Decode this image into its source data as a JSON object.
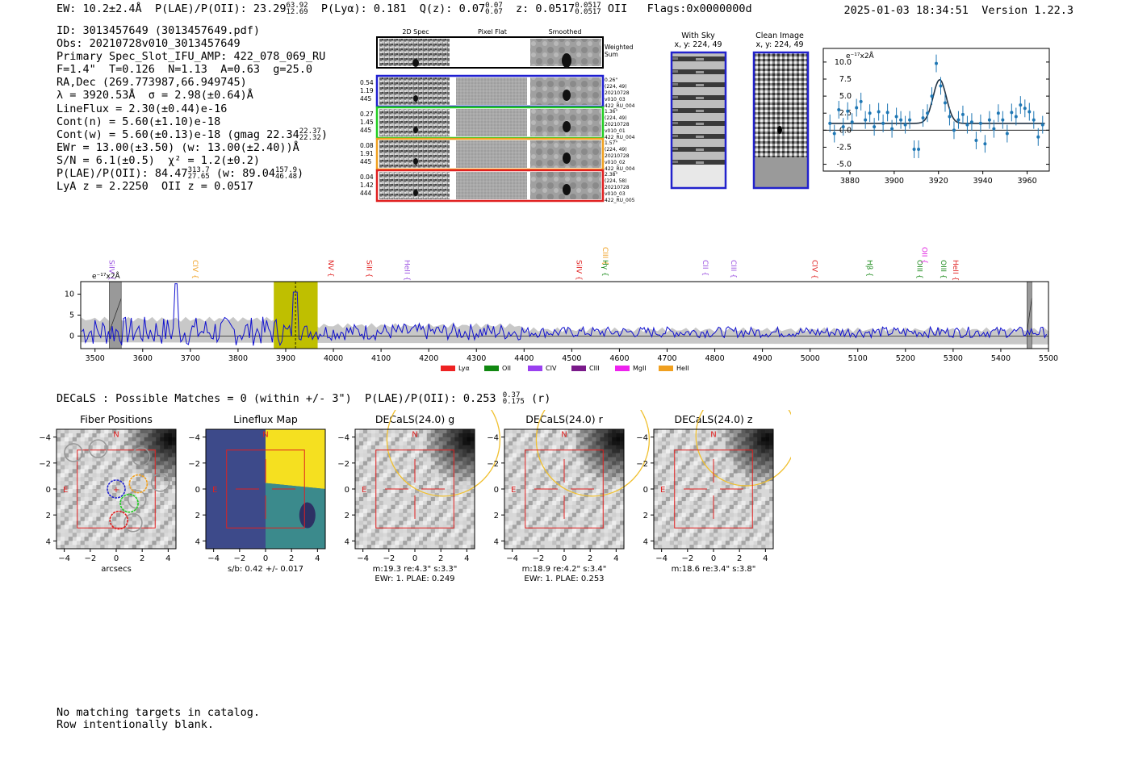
{
  "header": {
    "ew_label": "EW: 10.2±2.4Å",
    "plae_label": "P(LAE)/P(OII): 23.29",
    "plae_hi": "63.92",
    "plae_lo": "12.69",
    "plya": "P(Lyα): 0.181",
    "qz_label": "Q(z): 0.07",
    "qz_hi": "0.07",
    "qz_lo": "0.07",
    "z_label": "z: 0.0517",
    "z_hi": "0.0517",
    "z_lo": "0.0517",
    "z_line": "OII",
    "flags": "Flags:0x0000000d",
    "datetime": "2025-01-03 18:34:51",
    "version": "Version 1.22.3"
  },
  "info": {
    "id": "ID: 3013457649 (3013457649.pdf)",
    "obs": "Obs: 20210728v010_3013457649",
    "primary": "Primary Spec_Slot_IFU_AMP: 422_078_069_RU",
    "fiber": "F=1.4\"  T=0.126  N=1.13  A=0.63  g=25.0",
    "radec": "RA,Dec (269.773987,66.949745)",
    "lambda": "λ = 3920.53Å  σ = 2.98(±0.64)Å",
    "lineflux": "LineFlux = 2.30(±0.44)e-16",
    "cont_n": "Cont(n) = 5.60(±1.10)e-18",
    "cont_w": "Cont(w) = 5.60(±0.13)e-18 (gmag 22.34",
    "cont_w_hi": "22.37",
    "cont_w_lo": "22.32",
    "cont_w_end": ")",
    "ewr": "EWr = 13.00(±3.50) (w: 13.00(±2.40))Å",
    "sn": "S/N = 6.1(±0.5)  χ² = 1.2(±0.2)",
    "plae": "P(LAE)/P(OII): 84.47",
    "plae_hi": "313.7",
    "plae_lo": "27.65",
    "plae_w": "(w: 89.04",
    "plae_w_hi": "157.9",
    "plae_w_lo": "46.48",
    "plae_w_end": ")",
    "z": "LyA z = 2.2250  OII z = 0.0517"
  },
  "cutouts": {
    "col_headers": [
      "2D Spec",
      "Pixel Flat",
      "Smoothed"
    ],
    "weighted_sum": [
      "Weighted",
      "Sum"
    ],
    "rows": [
      {
        "left": [
          "0.54",
          "1.19",
          "445"
        ],
        "right": [
          "0.26\"",
          "(224, 49)",
          "20210728",
          "v010_03",
          "422_RU_004"
        ],
        "color": "#1f1fd0"
      },
      {
        "left": [
          "0.27",
          "1.45",
          "445"
        ],
        "right": [
          "1.36\"",
          "(224, 49)",
          "20210728",
          "v010_01",
          "422_RU_004"
        ],
        "color": "#22cc22"
      },
      {
        "left": [
          "0.08",
          "1.91",
          "445"
        ],
        "right": [
          "1.57\"",
          "(224, 49)",
          "20210728",
          "v010_02",
          "422_RU_004"
        ],
        "color": "#f0a020"
      },
      {
        "left": [
          "0.04",
          "1.42",
          "444"
        ],
        "right": [
          "2.38\"",
          "(224, 58)",
          "20210728",
          "v010_03",
          "422_RU_005"
        ],
        "color": "#e02020"
      }
    ]
  },
  "sky": {
    "with_sky_title": "With Sky",
    "with_sky_xy": "x, y: 224, 49",
    "clean_title": "Clean Image",
    "clean_xy": "x, y: 224, 49"
  },
  "chart_data": [
    {
      "type": "scatter",
      "title": "",
      "unit_label": "e⁻¹⁷x2Å",
      "xlim": [
        3868,
        3970
      ],
      "ylim": [
        -6,
        12
      ],
      "xticks": [
        3880,
        3900,
        3920,
        3940,
        3960
      ],
      "yticks": [
        -5.0,
        -2.5,
        0.0,
        2.5,
        5.0,
        7.5,
        10.0
      ],
      "points": [
        [
          3871,
          1.0
        ],
        [
          3873,
          -0.5
        ],
        [
          3875,
          3.0
        ],
        [
          3877,
          0.5
        ],
        [
          3879,
          2.8
        ],
        [
          3881,
          1.2
        ],
        [
          3883,
          3.3
        ],
        [
          3885,
          4.2
        ],
        [
          3887,
          1.5
        ],
        [
          3889,
          2.5
        ],
        [
          3891,
          0.5
        ],
        [
          3893,
          2.7
        ],
        [
          3895,
          1.0
        ],
        [
          3897,
          2.6
        ],
        [
          3899,
          0.2
        ],
        [
          3901,
          2.0
        ],
        [
          3903,
          1.5
        ],
        [
          3905,
          0.8
        ],
        [
          3907,
          1.5
        ],
        [
          3909,
          -2.8
        ],
        [
          3911,
          -2.8
        ],
        [
          3913,
          1.8
        ],
        [
          3915,
          2.5
        ],
        [
          3917,
          5.0
        ],
        [
          3919,
          9.8
        ],
        [
          3921,
          6.5
        ],
        [
          3923,
          4.0
        ],
        [
          3925,
          2.0
        ],
        [
          3927,
          0.0
        ],
        [
          3929,
          1.5
        ],
        [
          3931,
          2.3
        ],
        [
          3933,
          0.8
        ],
        [
          3935,
          1.2
        ],
        [
          3937,
          -1.5
        ],
        [
          3939,
          1.0
        ],
        [
          3941,
          -2.0
        ],
        [
          3943,
          1.5
        ],
        [
          3945,
          0.2
        ],
        [
          3947,
          2.5
        ],
        [
          3949,
          1.5
        ],
        [
          3951,
          -0.5
        ],
        [
          3953,
          2.6
        ],
        [
          3955,
          2.0
        ],
        [
          3957,
          3.7
        ],
        [
          3959,
          3.2
        ],
        [
          3961,
          2.7
        ],
        [
          3963,
          1.5
        ],
        [
          3965,
          -1.0
        ],
        [
          3967,
          0.8
        ]
      ],
      "fit": {
        "center": 3920.53,
        "sigma": 2.98,
        "amplitude": 6.4,
        "continuum": 1.0
      }
    },
    {
      "type": "line",
      "title": "",
      "unit_label": "e⁻¹⁷x2Å",
      "xlim": [
        3470,
        5500
      ],
      "ylim": [
        -3,
        13
      ],
      "xticks": [
        3500,
        3600,
        3700,
        3800,
        3900,
        4000,
        4100,
        4200,
        4300,
        4400,
        4500,
        4600,
        4700,
        4800,
        4900,
        5000,
        5100,
        5200,
        5300,
        5400,
        5500
      ],
      "yticks": [
        0,
        5,
        10
      ],
      "highlight_range": [
        3875,
        3967
      ],
      "line_center": 3920.53,
      "masked_ranges": [
        [
          3530,
          3555
        ],
        [
          5455,
          5465
        ]
      ],
      "line_labels": [
        {
          "text": "SiIV",
          "x": 3530,
          "color": "#9a50e0",
          "tier": 0
        },
        {
          "text": "CIV",
          "x": 3705,
          "color": "#f0a020",
          "tier": 0
        },
        {
          "text": "NV",
          "x": 3990,
          "color": "#e02020",
          "tier": 0
        },
        {
          "text": "SiII",
          "x": 4070,
          "color": "#e02020",
          "tier": 0
        },
        {
          "text": "HeII",
          "x": 4150,
          "color": "#9a50e0",
          "tier": 0
        },
        {
          "text": "SiIV",
          "x": 4510,
          "color": "#e02020",
          "tier": 0
        },
        {
          "text": "CIII",
          "x": 4565,
          "color": "#f0a020",
          "tier": 1
        },
        {
          "text": "Hγ",
          "x": 4565,
          "color": "#1a8a1a",
          "tier": 0
        },
        {
          "text": "CII",
          "x": 4775,
          "color": "#9a50e0",
          "tier": 0
        },
        {
          "text": "CIII",
          "x": 4835,
          "color": "#9a50e0",
          "tier": 0
        },
        {
          "text": "CIV",
          "x": 5005,
          "color": "#e02020",
          "tier": 0
        },
        {
          "text": "Hβ",
          "x": 5120,
          "color": "#1a8a1a",
          "tier": 0
        },
        {
          "text": "OIII",
          "x": 5225,
          "color": "#1a8a1a",
          "tier": 0
        },
        {
          "text": "OII",
          "x": 5235,
          "color": "#e020e0",
          "tier": 1
        },
        {
          "text": "OIII",
          "x": 5275,
          "color": "#1a8a1a",
          "tier": 0
        },
        {
          "text": "HeII",
          "x": 5300,
          "color": "#e02020",
          "tier": 0
        }
      ],
      "legend": [
        {
          "name": "Lyα",
          "color": "#ee2222"
        },
        {
          "name": "OII",
          "color": "#118811"
        },
        {
          "name": "CIV",
          "color": "#9a40f0"
        },
        {
          "name": "CIII",
          "color": "#7a1a8a"
        },
        {
          "name": "MgII",
          "color": "#ee22ee"
        },
        {
          "name": "HeII",
          "color": "#f0a020"
        }
      ]
    }
  ],
  "decals": {
    "summary": "DECaLS : Possible Matches = 0 (within +/- 3\")  P(LAE)/P(OII): 0.253",
    "summary_hi": "0.37",
    "summary_lo": "0.175",
    "summary_end": "(r)",
    "panels": [
      {
        "title": "Fiber Positions",
        "bottom1": "arcsecs",
        "bottom2": ""
      },
      {
        "title": "Lineflux Map",
        "bottom1": "s/b: 0.42 +/- 0.017",
        "bottom2": ""
      },
      {
        "title": "DECaLS(24.0) g",
        "bottom1": "m:19.3  re:4.3\"  s:3.3\"",
        "bottom2": "EWr: 1. PLAE: 0.249"
      },
      {
        "title": "DECaLS(24.0) r",
        "bottom1": "m:18.9  re:4.2\"  s:3.4\"",
        "bottom2": "EWr: 1. PLAE: 0.253"
      },
      {
        "title": "DECaLS(24.0) z",
        "bottom1": "m:18.6  re:3.4\"  s:3.8\"",
        "bottom2": ""
      }
    ],
    "tick_labels": [
      "−4",
      "−2",
      "0",
      "2",
      "4"
    ],
    "north": "N",
    "east": "E"
  },
  "footer": {
    "line1": "No matching targets in catalog.",
    "line2": "Row intentionally blank."
  }
}
